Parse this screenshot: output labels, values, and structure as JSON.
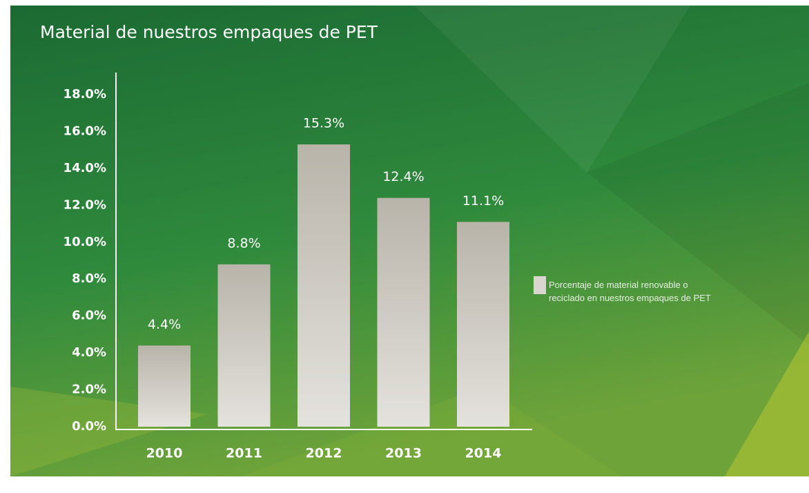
{
  "chart_data": {
    "type": "bar",
    "title": "Material de nuestros empaques de PET",
    "categories": [
      "2010",
      "2011",
      "2012",
      "2013",
      "2014"
    ],
    "series": [
      {
        "name": "Porcentaje de material renovable o reciclado en nuestros empaques de PET",
        "color": "#cbc7bf",
        "values": [
          4.4,
          8.8,
          15.3,
          12.4,
          11.1
        ],
        "value_labels": [
          "4.4%",
          "8.8%",
          "15.3%",
          "12.4%",
          "11.1%"
        ]
      }
    ],
    "ylim": [
      0,
      18
    ],
    "yticks": [
      {
        "value": 0,
        "label": "0.0%"
      },
      {
        "value": 2,
        "label": "2.0%"
      },
      {
        "value": 4,
        "label": "4.0%"
      },
      {
        "value": 6,
        "label": "6.0%"
      },
      {
        "value": 8,
        "label": "8.0%"
      },
      {
        "value": 10,
        "label": "10.0%"
      },
      {
        "value": 12,
        "label": "12.0%"
      },
      {
        "value": 14,
        "label": "14.0%"
      },
      {
        "value": 16,
        "label": "16.0%"
      },
      {
        "value": 18,
        "label": "18.0%"
      }
    ],
    "grid": false,
    "legend": "right"
  }
}
